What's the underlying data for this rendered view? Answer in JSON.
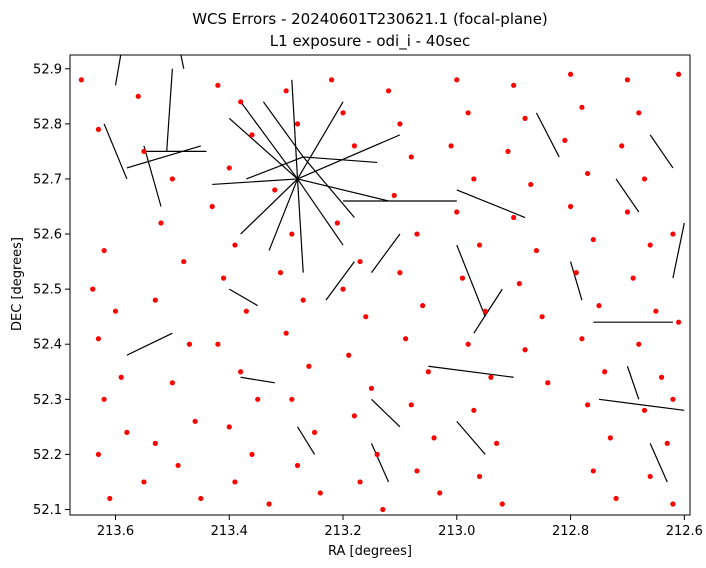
{
  "chart_data": {
    "type": "scatter",
    "title": "WCS Errors - 20240601T230621.1 (focal-plane)",
    "subtitle": "L1 exposure - odi_i - 40sec",
    "xlabel": "RA [degrees]",
    "ylabel": "DEC [degrees]",
    "xlim": [
      213.68,
      212.59
    ],
    "ylim": [
      52.09,
      52.925
    ],
    "x_inverted": true,
    "x_ticks": [
      213.6,
      213.4,
      213.2,
      213.0,
      212.8,
      212.6
    ],
    "x_tick_labels": [
      "213.6",
      "213.4",
      "213.2",
      "213.0",
      "212.8",
      "212.6"
    ],
    "y_ticks": [
      52.1,
      52.2,
      52.3,
      52.4,
      52.5,
      52.6,
      52.7,
      52.8,
      52.9
    ],
    "y_tick_labels": [
      "52.1",
      "52.2",
      "52.3",
      "52.4",
      "52.5",
      "52.6",
      "52.7",
      "52.8",
      "52.9"
    ],
    "grid": false,
    "series": [
      {
        "kind": "star-positions",
        "color": "#ff0000",
        "marker": "circle",
        "points": [
          [
            213.66,
            52.88
          ],
          [
            213.63,
            52.79
          ],
          [
            213.62,
            52.57
          ],
          [
            213.64,
            52.5
          ],
          [
            213.6,
            52.46
          ],
          [
            213.63,
            52.41
          ],
          [
            213.59,
            52.34
          ],
          [
            213.62,
            52.3
          ],
          [
            213.58,
            52.24
          ],
          [
            213.63,
            52.2
          ],
          [
            213.61,
            52.12
          ],
          [
            213.55,
            52.15
          ],
          [
            213.56,
            52.85
          ],
          [
            213.55,
            52.75
          ],
          [
            213.5,
            52.7
          ],
          [
            213.52,
            52.62
          ],
          [
            213.48,
            52.55
          ],
          [
            213.53,
            52.48
          ],
          [
            213.47,
            52.4
          ],
          [
            213.5,
            52.33
          ],
          [
            213.46,
            52.26
          ],
          [
            213.53,
            52.22
          ],
          [
            213.49,
            52.18
          ],
          [
            213.45,
            52.12
          ],
          [
            213.42,
            52.87
          ],
          [
            213.38,
            52.84
          ],
          [
            213.36,
            52.78
          ],
          [
            213.4,
            52.72
          ],
          [
            213.43,
            52.65
          ],
          [
            213.39,
            52.58
          ],
          [
            213.41,
            52.52
          ],
          [
            213.37,
            52.46
          ],
          [
            213.42,
            52.4
          ],
          [
            213.38,
            52.35
          ],
          [
            213.35,
            52.3
          ],
          [
            213.4,
            52.25
          ],
          [
            213.36,
            52.2
          ],
          [
            213.39,
            52.15
          ],
          [
            213.33,
            52.11
          ],
          [
            213.3,
            52.86
          ],
          [
            213.28,
            52.8
          ],
          [
            213.32,
            52.68
          ],
          [
            213.29,
            52.6
          ],
          [
            213.31,
            52.53
          ],
          [
            213.27,
            52.48
          ],
          [
            213.3,
            52.42
          ],
          [
            213.26,
            52.36
          ],
          [
            213.29,
            52.3
          ],
          [
            213.25,
            52.24
          ],
          [
            213.28,
            52.18
          ],
          [
            213.24,
            52.13
          ],
          [
            213.22,
            52.88
          ],
          [
            213.2,
            52.82
          ],
          [
            213.18,
            52.76
          ],
          [
            213.21,
            52.62
          ],
          [
            213.17,
            52.55
          ],
          [
            213.2,
            52.5
          ],
          [
            213.16,
            52.45
          ],
          [
            213.19,
            52.38
          ],
          [
            213.15,
            52.32
          ],
          [
            213.18,
            52.27
          ],
          [
            213.14,
            52.2
          ],
          [
            213.17,
            52.15
          ],
          [
            213.13,
            52.1
          ],
          [
            213.12,
            52.86
          ],
          [
            213.1,
            52.8
          ],
          [
            213.08,
            52.74
          ],
          [
            213.11,
            52.67
          ],
          [
            213.07,
            52.6
          ],
          [
            213.1,
            52.53
          ],
          [
            213.06,
            52.47
          ],
          [
            213.09,
            52.41
          ],
          [
            213.05,
            52.35
          ],
          [
            213.08,
            52.29
          ],
          [
            213.04,
            52.23
          ],
          [
            213.07,
            52.17
          ],
          [
            213.03,
            52.13
          ],
          [
            213.0,
            52.88
          ],
          [
            212.98,
            52.82
          ],
          [
            213.01,
            52.76
          ],
          [
            212.97,
            52.7
          ],
          [
            213.0,
            52.64
          ],
          [
            212.96,
            52.58
          ],
          [
            212.99,
            52.52
          ],
          [
            212.95,
            52.46
          ],
          [
            212.98,
            52.4
          ],
          [
            212.94,
            52.34
          ],
          [
            212.97,
            52.28
          ],
          [
            212.93,
            52.22
          ],
          [
            212.96,
            52.16
          ],
          [
            212.92,
            52.11
          ],
          [
            212.9,
            52.87
          ],
          [
            212.88,
            52.81
          ],
          [
            212.91,
            52.75
          ],
          [
            212.87,
            52.69
          ],
          [
            212.9,
            52.63
          ],
          [
            212.86,
            52.57
          ],
          [
            212.89,
            52.51
          ],
          [
            212.85,
            52.45
          ],
          [
            212.88,
            52.39
          ],
          [
            212.84,
            52.33
          ],
          [
            212.8,
            52.89
          ],
          [
            212.78,
            52.83
          ],
          [
            212.81,
            52.77
          ],
          [
            212.77,
            52.71
          ],
          [
            212.8,
            52.65
          ],
          [
            212.76,
            52.59
          ],
          [
            212.79,
            52.53
          ],
          [
            212.75,
            52.47
          ],
          [
            212.78,
            52.41
          ],
          [
            212.74,
            52.35
          ],
          [
            212.77,
            52.29
          ],
          [
            212.73,
            52.23
          ],
          [
            212.76,
            52.17
          ],
          [
            212.72,
            52.12
          ],
          [
            212.7,
            52.88
          ],
          [
            212.68,
            52.82
          ],
          [
            212.71,
            52.76
          ],
          [
            212.67,
            52.7
          ],
          [
            212.7,
            52.64
          ],
          [
            212.66,
            52.58
          ],
          [
            212.69,
            52.52
          ],
          [
            212.65,
            52.46
          ],
          [
            212.68,
            52.4
          ],
          [
            212.64,
            52.34
          ],
          [
            212.67,
            52.28
          ],
          [
            212.63,
            52.22
          ],
          [
            212.66,
            52.16
          ],
          [
            212.62,
            52.11
          ],
          [
            212.61,
            52.89
          ],
          [
            212.62,
            52.6
          ],
          [
            212.61,
            52.44
          ],
          [
            212.62,
            52.3
          ]
        ]
      },
      {
        "kind": "error-vectors",
        "color": "#000000",
        "segments": [
          [
            213.5,
            52.9,
            213.51,
            52.75
          ],
          [
            213.55,
            52.76,
            213.52,
            52.65
          ],
          [
            213.58,
            52.72,
            213.45,
            52.76
          ],
          [
            213.55,
            52.75,
            213.44,
            52.75
          ],
          [
            213.62,
            52.8,
            213.58,
            52.7
          ],
          [
            213.6,
            52.87,
            213.59,
            52.93
          ],
          [
            213.48,
            52.9,
            213.49,
            52.95
          ],
          [
            213.28,
            52.7,
            213.38,
            52.84
          ],
          [
            213.28,
            52.7,
            213.4,
            52.81
          ],
          [
            213.28,
            52.7,
            213.43,
            52.69
          ],
          [
            213.28,
            52.7,
            213.38,
            52.6
          ],
          [
            213.28,
            52.7,
            213.33,
            52.57
          ],
          [
            213.28,
            52.7,
            213.27,
            52.53
          ],
          [
            213.28,
            52.7,
            213.2,
            52.58
          ],
          [
            213.28,
            52.7,
            213.12,
            52.66
          ],
          [
            213.28,
            52.7,
            213.1,
            52.78
          ],
          [
            213.28,
            52.7,
            213.2,
            52.84
          ],
          [
            213.28,
            52.7,
            213.29,
            52.88
          ],
          [
            213.27,
            52.74,
            213.34,
            52.84
          ],
          [
            213.27,
            52.74,
            213.37,
            52.7
          ],
          [
            213.27,
            52.74,
            213.18,
            52.63
          ],
          [
            213.27,
            52.74,
            213.14,
            52.73
          ],
          [
            213.2,
            52.66,
            213.0,
            52.66
          ],
          [
            213.0,
            52.68,
            212.88,
            52.63
          ],
          [
            213.05,
            52.36,
            212.9,
            52.34
          ],
          [
            213.0,
            52.26,
            212.95,
            52.2
          ],
          [
            212.75,
            52.3,
            212.6,
            52.28
          ],
          [
            212.76,
            52.44,
            212.62,
            52.44
          ],
          [
            212.66,
            52.22,
            212.63,
            52.15
          ],
          [
            212.6,
            52.62,
            212.62,
            52.52
          ],
          [
            213.5,
            52.42,
            213.58,
            52.38
          ],
          [
            213.38,
            52.34,
            213.32,
            52.33
          ],
          [
            213.18,
            52.55,
            213.23,
            52.48
          ],
          [
            213.1,
            52.6,
            213.15,
            52.53
          ],
          [
            213.0,
            52.58,
            212.95,
            52.45
          ],
          [
            212.92,
            52.5,
            212.97,
            52.42
          ],
          [
            213.15,
            52.3,
            213.1,
            52.25
          ],
          [
            213.12,
            52.15,
            213.15,
            52.22
          ],
          [
            212.86,
            52.82,
            212.82,
            52.74
          ],
          [
            212.72,
            52.7,
            212.68,
            52.64
          ],
          [
            212.66,
            52.78,
            212.62,
            52.72
          ],
          [
            213.4,
            52.5,
            213.35,
            52.47
          ],
          [
            213.25,
            52.2,
            213.28,
            52.25
          ],
          [
            212.8,
            52.55,
            212.78,
            52.48
          ],
          [
            212.7,
            52.36,
            212.68,
            52.3
          ]
        ]
      }
    ]
  }
}
